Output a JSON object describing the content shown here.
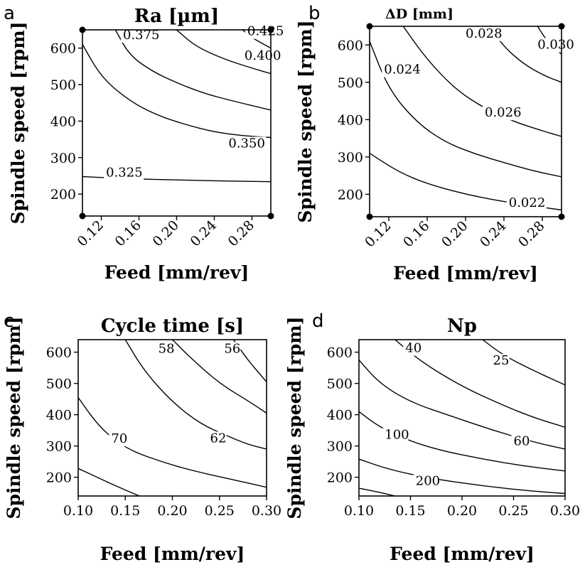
{
  "chart_data": [
    {
      "panel": "a",
      "type": "contour",
      "title": "Ra [µm]",
      "xlabel": "Feed [mm/rev]",
      "ylabel": "Spindle speed [rpm]",
      "xlim": [
        0.1,
        0.3
      ],
      "ylim": [
        140,
        650
      ],
      "xticks": [
        "0.12",
        "0.16",
        "0.20",
        "0.24",
        "0.28"
      ],
      "yticks": [
        "200",
        "300",
        "400",
        "500",
        "600"
      ],
      "rotated_xticks": true,
      "corner_markers": true,
      "contours": [
        {
          "level": "0.325",
          "points": [
            [
              0.1,
              248
            ],
            [
              0.15,
              242
            ],
            [
              0.2,
              239
            ],
            [
              0.25,
              236
            ],
            [
              0.3,
              234
            ]
          ],
          "label_at": [
            0.125,
            248
          ]
        },
        {
          "level": "0.350",
          "points": [
            [
              0.1,
              610
            ],
            [
              0.12,
              520
            ],
            [
              0.15,
              455
            ],
            [
              0.18,
              415
            ],
            [
              0.21,
              390
            ],
            [
              0.24,
              370
            ],
            [
              0.27,
              360
            ],
            [
              0.3,
              355
            ]
          ],
          "label_at": [
            0.255,
            328
          ]
        },
        {
          "level": "0.375",
          "points": [
            [
              0.135,
              650
            ],
            [
              0.15,
              580
            ],
            [
              0.175,
              535
            ],
            [
              0.2,
              505
            ],
            [
              0.23,
              475
            ],
            [
              0.26,
              455
            ],
            [
              0.3,
              430
            ]
          ],
          "label_at": [
            0.143,
            625
          ]
        },
        {
          "level": "0.400",
          "points": [
            [
              0.2,
              650
            ],
            [
              0.22,
              605
            ],
            [
              0.25,
              570
            ],
            [
              0.28,
              545
            ],
            [
              0.3,
              530
            ]
          ],
          "label_at": [
            0.272,
            568
          ]
        },
        {
          "level": "0.425",
          "points": [
            [
              0.27,
              650
            ],
            [
              0.28,
              628
            ],
            [
              0.3,
              600
            ]
          ],
          "label_at": [
            0.275,
            635
          ]
        }
      ]
    },
    {
      "panel": "b",
      "type": "contour",
      "title": "ΔD [mm]",
      "xlabel": "Feed [mm/rev]",
      "ylabel": "Spindle speed [rpm]",
      "xlim": [
        0.1,
        0.3
      ],
      "ylim": [
        140,
        650
      ],
      "xticks": [
        "0.12",
        "0.16",
        "0.20",
        "0.24",
        "0.28"
      ],
      "yticks": [
        "200",
        "300",
        "400",
        "500",
        "600"
      ],
      "rotated_xticks": true,
      "corner_markers": true,
      "contours": [
        {
          "level": "0.022",
          "points": [
            [
              0.1,
              310
            ],
            [
              0.13,
              260
            ],
            [
              0.16,
              228
            ],
            [
              0.2,
              200
            ],
            [
              0.24,
              180
            ],
            [
              0.3,
              158
            ]
          ],
          "label_at": [
            0.245,
            167
          ]
        },
        {
          "level": "0.024",
          "points": [
            [
              0.1,
              610
            ],
            [
              0.12,
              480
            ],
            [
              0.15,
              390
            ],
            [
              0.18,
              338
            ],
            [
              0.21,
              308
            ],
            [
              0.24,
              285
            ],
            [
              0.27,
              263
            ],
            [
              0.3,
              247
            ]
          ],
          "label_at": [
            0.115,
            523
          ]
        },
        {
          "level": "0.026",
          "points": [
            [
              0.135,
              650
            ],
            [
              0.16,
              560
            ],
            [
              0.19,
              480
            ],
            [
              0.22,
              430
            ],
            [
              0.25,
              395
            ],
            [
              0.28,
              370
            ],
            [
              0.3,
              355
            ]
          ],
          "label_at": [
            0.22,
            408
          ]
        },
        {
          "level": "0.028",
          "points": [
            [
              0.225,
              650
            ],
            [
              0.24,
              595
            ],
            [
              0.26,
              550
            ],
            [
              0.28,
              520
            ],
            [
              0.3,
              500
            ]
          ],
          "label_at": [
            0.2,
            620
          ]
        },
        {
          "level": "0.030",
          "points": [
            [
              0.3,
              575
            ],
            [
              0.285,
              610
            ],
            [
              0.275,
              650
            ]
          ],
          "label_at": [
            0.275,
            590
          ]
        }
      ]
    },
    {
      "panel": "c",
      "type": "contour",
      "title": "Cycle time [s]",
      "xlabel": "Feed [mm/rev]",
      "ylabel": "Spindle speed [rpm]",
      "xlim": [
        0.1,
        0.3
      ],
      "ylim": [
        140,
        640
      ],
      "xticks": [
        "0.10",
        "0.15",
        "0.20",
        "0.25",
        "0.30"
      ],
      "xtick_values": [
        0.1,
        0.15,
        0.2,
        0.25,
        0.3
      ],
      "yticks": [
        "200",
        "300",
        "400",
        "500",
        "600"
      ],
      "rotated_xticks": false,
      "corner_markers": false,
      "contours": [
        {
          "level": "",
          "points": [
            [
              0.1,
              228
            ],
            [
              0.12,
              200
            ],
            [
              0.14,
              172
            ],
            [
              0.165,
              140
            ]
          ],
          "label_at": null
        },
        {
          "level": "70",
          "points": [
            [
              0.1,
              455
            ],
            [
              0.12,
              370
            ],
            [
              0.14,
              315
            ],
            [
              0.16,
              280
            ],
            [
              0.19,
              248
            ],
            [
              0.22,
              222
            ],
            [
              0.26,
              195
            ],
            [
              0.3,
              168
            ]
          ],
          "label_at": [
            0.135,
            310
          ]
        },
        {
          "level": "62",
          "points": [
            [
              0.15,
              640
            ],
            [
              0.17,
              540
            ],
            [
              0.2,
              440
            ],
            [
              0.23,
              370
            ],
            [
              0.26,
              330
            ],
            [
              0.28,
              305
            ],
            [
              0.3,
              290
            ]
          ],
          "label_at": [
            0.24,
            312
          ]
        },
        {
          "level": "58",
          "points": [
            [
              0.2,
              640
            ],
            [
              0.22,
              580
            ],
            [
              0.25,
              500
            ],
            [
              0.28,
              445
            ],
            [
              0.3,
              405
            ]
          ],
          "label_at": [
            0.185,
            598
          ]
        },
        {
          "level": "56",
          "points": [
            [
              0.265,
              640
            ],
            [
              0.28,
              575
            ],
            [
              0.3,
              505
            ]
          ],
          "label_at": [
            0.255,
            598
          ]
        }
      ]
    },
    {
      "panel": "d",
      "type": "contour",
      "title": "Np",
      "xlabel": "Feed [mm/rev]",
      "ylabel": "Spindle speed [rpm]",
      "xlim": [
        0.1,
        0.3
      ],
      "ylim": [
        140,
        640
      ],
      "xticks": [
        "0.10",
        "0.15",
        "0.20",
        "0.25",
        "0.30"
      ],
      "xtick_values": [
        0.1,
        0.15,
        0.2,
        0.25,
        0.3
      ],
      "yticks": [
        "200",
        "300",
        "400",
        "500",
        "600"
      ],
      "rotated_xticks": false,
      "corner_markers": false,
      "contours": [
        {
          "level": "200",
          "points": [
            [
              0.1,
              165
            ],
            [
              0.12,
              152
            ],
            [
              0.135,
              140
            ]
          ],
          "label_at": [
            0.155,
            175
          ]
        },
        {
          "level": "",
          "points": [
            [
              0.1,
              258
            ],
            [
              0.13,
              224
            ],
            [
              0.17,
              196
            ],
            [
              0.22,
              172
            ],
            [
              0.27,
              155
            ],
            [
              0.3,
              148
            ]
          ],
          "label_at": null
        },
        {
          "level": "100",
          "points": [
            [
              0.1,
              410
            ],
            [
              0.12,
              360
            ],
            [
              0.15,
              315
            ],
            [
              0.18,
              285
            ],
            [
              0.22,
              258
            ],
            [
              0.26,
              236
            ],
            [
              0.3,
              220
            ]
          ],
          "label_at": [
            0.125,
            323
          ]
        },
        {
          "level": "60",
          "points": [
            [
              0.1,
              575
            ],
            [
              0.12,
              500
            ],
            [
              0.15,
              440
            ],
            [
              0.19,
              395
            ],
            [
              0.23,
              350
            ],
            [
              0.27,
              312
            ],
            [
              0.3,
              290
            ]
          ],
          "label_at": [
            0.25,
            303
          ]
        },
        {
          "level": "40",
          "points": [
            [
              0.135,
              640
            ],
            [
              0.16,
              570
            ],
            [
              0.2,
              490
            ],
            [
              0.24,
              430
            ],
            [
              0.27,
              390
            ],
            [
              0.3,
              360
            ]
          ],
          "label_at": [
            0.145,
            600
          ]
        },
        {
          "level": "25",
          "points": [
            [
              0.22,
              640
            ],
            [
              0.24,
              590
            ],
            [
              0.27,
              540
            ],
            [
              0.3,
              495
            ]
          ],
          "label_at": [
            0.23,
            560
          ]
        }
      ]
    }
  ]
}
